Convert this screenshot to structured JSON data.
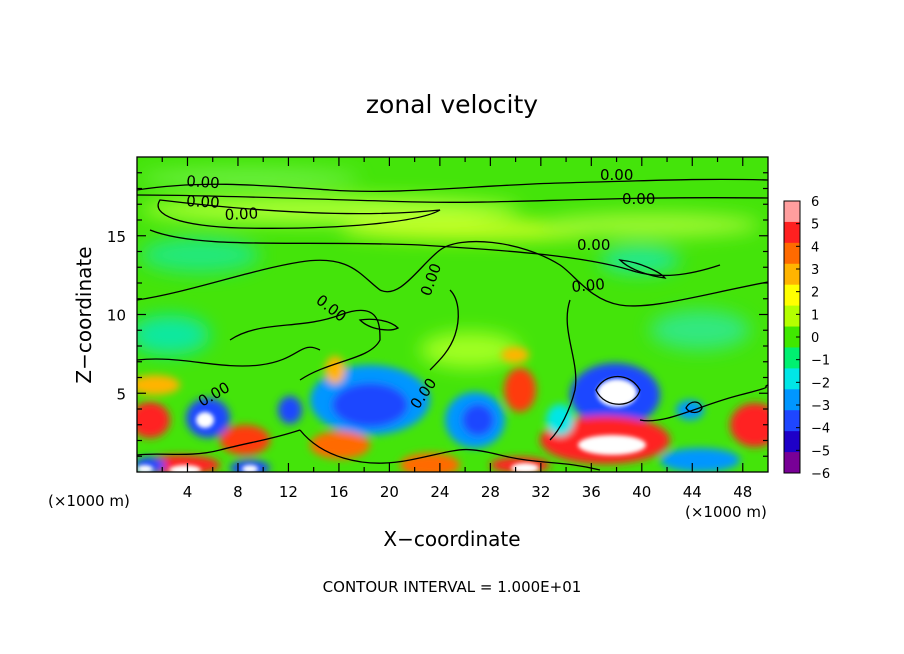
{
  "chart_data": {
    "type": "heatmap",
    "title": "zonal velocity",
    "xlabel": "X−coordinate",
    "ylabel": "Z−coordinate",
    "x_unit_left": "(×1000 m)",
    "x_unit_right": "(×1000 m)",
    "xlim": [
      0,
      50
    ],
    "ylim": [
      0,
      20
    ],
    "x_ticks": [
      "4",
      "8",
      "12",
      "16",
      "20",
      "24",
      "28",
      "32",
      "36",
      "40",
      "44",
      "48"
    ],
    "y_ticks": [
      "5",
      "10",
      "15"
    ],
    "colorbar_ticks": [
      "6",
      "5",
      "4",
      "3",
      "2",
      "1",
      "0",
      "−1",
      "−2",
      "−3",
      "−4",
      "−5",
      "−6"
    ],
    "colorbar_colors": [
      "#ff9e9e",
      "#ff2020",
      "#ff6a00",
      "#ffb400",
      "#ffff00",
      "#b4ff00",
      "#40e800",
      "#00f070",
      "#00e6e6",
      "#0096ff",
      "#1e46ff",
      "#1e00c8",
      "#780096"
    ],
    "contour_label": "0.00",
    "contour_interval_note": "CONTOUR INTERVAL = 1.000E+01",
    "features": [
      {
        "x": 19,
        "z": 3.5,
        "value": -5
      },
      {
        "x": 27,
        "z": 3.5,
        "value": -4
      },
      {
        "x": 38,
        "z": 5.5,
        "value": -6
      },
      {
        "x": 38,
        "z": 2,
        "value": 6
      },
      {
        "x": 30,
        "z": 5,
        "value": 4
      },
      {
        "x": 5,
        "z": 3,
        "value": -5
      },
      {
        "x": 2,
        "z": 3,
        "value": 5
      },
      {
        "x": 48,
        "z": 3,
        "value": 5
      },
      {
        "x": 9,
        "z": 2,
        "value": 4
      }
    ]
  }
}
